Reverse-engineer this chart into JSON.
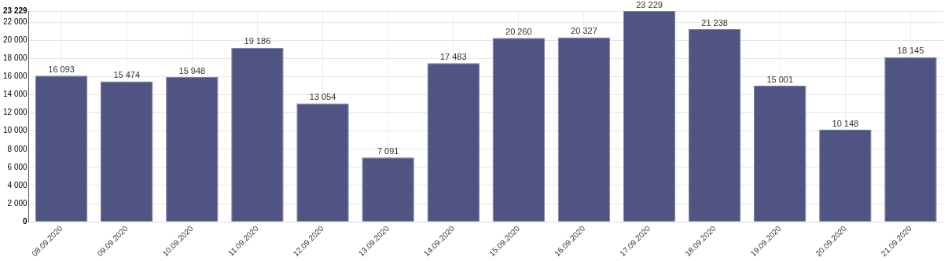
{
  "chart_data": {
    "type": "bar",
    "categories": [
      "08.09.2020",
      "09.09.2020",
      "10.09.2020",
      "11.09.2020",
      "12.09.2020",
      "13.09.2020",
      "14.09.2020",
      "15.09.2020",
      "16.09.2020",
      "17.09.2020",
      "18.09.2020",
      "19.09.2020",
      "20.09.2020",
      "21.09.2020"
    ],
    "values": [
      16093,
      15474,
      15948,
      19186,
      13054,
      7091,
      17483,
      20260,
      20327,
      23229,
      21238,
      15001,
      10148,
      18145
    ],
    "value_labels": [
      "16 093",
      "15 474",
      "15 948",
      "19 186",
      "13 054",
      "7 091",
      "17 483",
      "20 260",
      "20 327",
      "23 229",
      "21 238",
      "15 001",
      "10 148",
      "18 145"
    ],
    "color": "#4f5482",
    "ylim": [
      0,
      23229
    ],
    "yticks": [
      0,
      {
        "value": 2000,
        "label": "2 000"
      },
      {
        "value": 4000,
        "label": "4 000"
      },
      {
        "value": 6000,
        "label": "6 000"
      },
      {
        "value": 8000,
        "label": "8 000"
      },
      {
        "value": 10000,
        "label": "10 000"
      },
      {
        "value": 12000,
        "label": "12 000"
      },
      {
        "value": 14000,
        "label": "14 000"
      },
      {
        "value": 16000,
        "label": "16 000"
      },
      {
        "value": 18000,
        "label": "18 000"
      },
      {
        "value": 20000,
        "label": "20 000"
      },
      {
        "value": 22000,
        "label": "22 000"
      },
      {
        "value": 23229,
        "label": "23 229"
      }
    ],
    "grid": true,
    "legend": false
  }
}
